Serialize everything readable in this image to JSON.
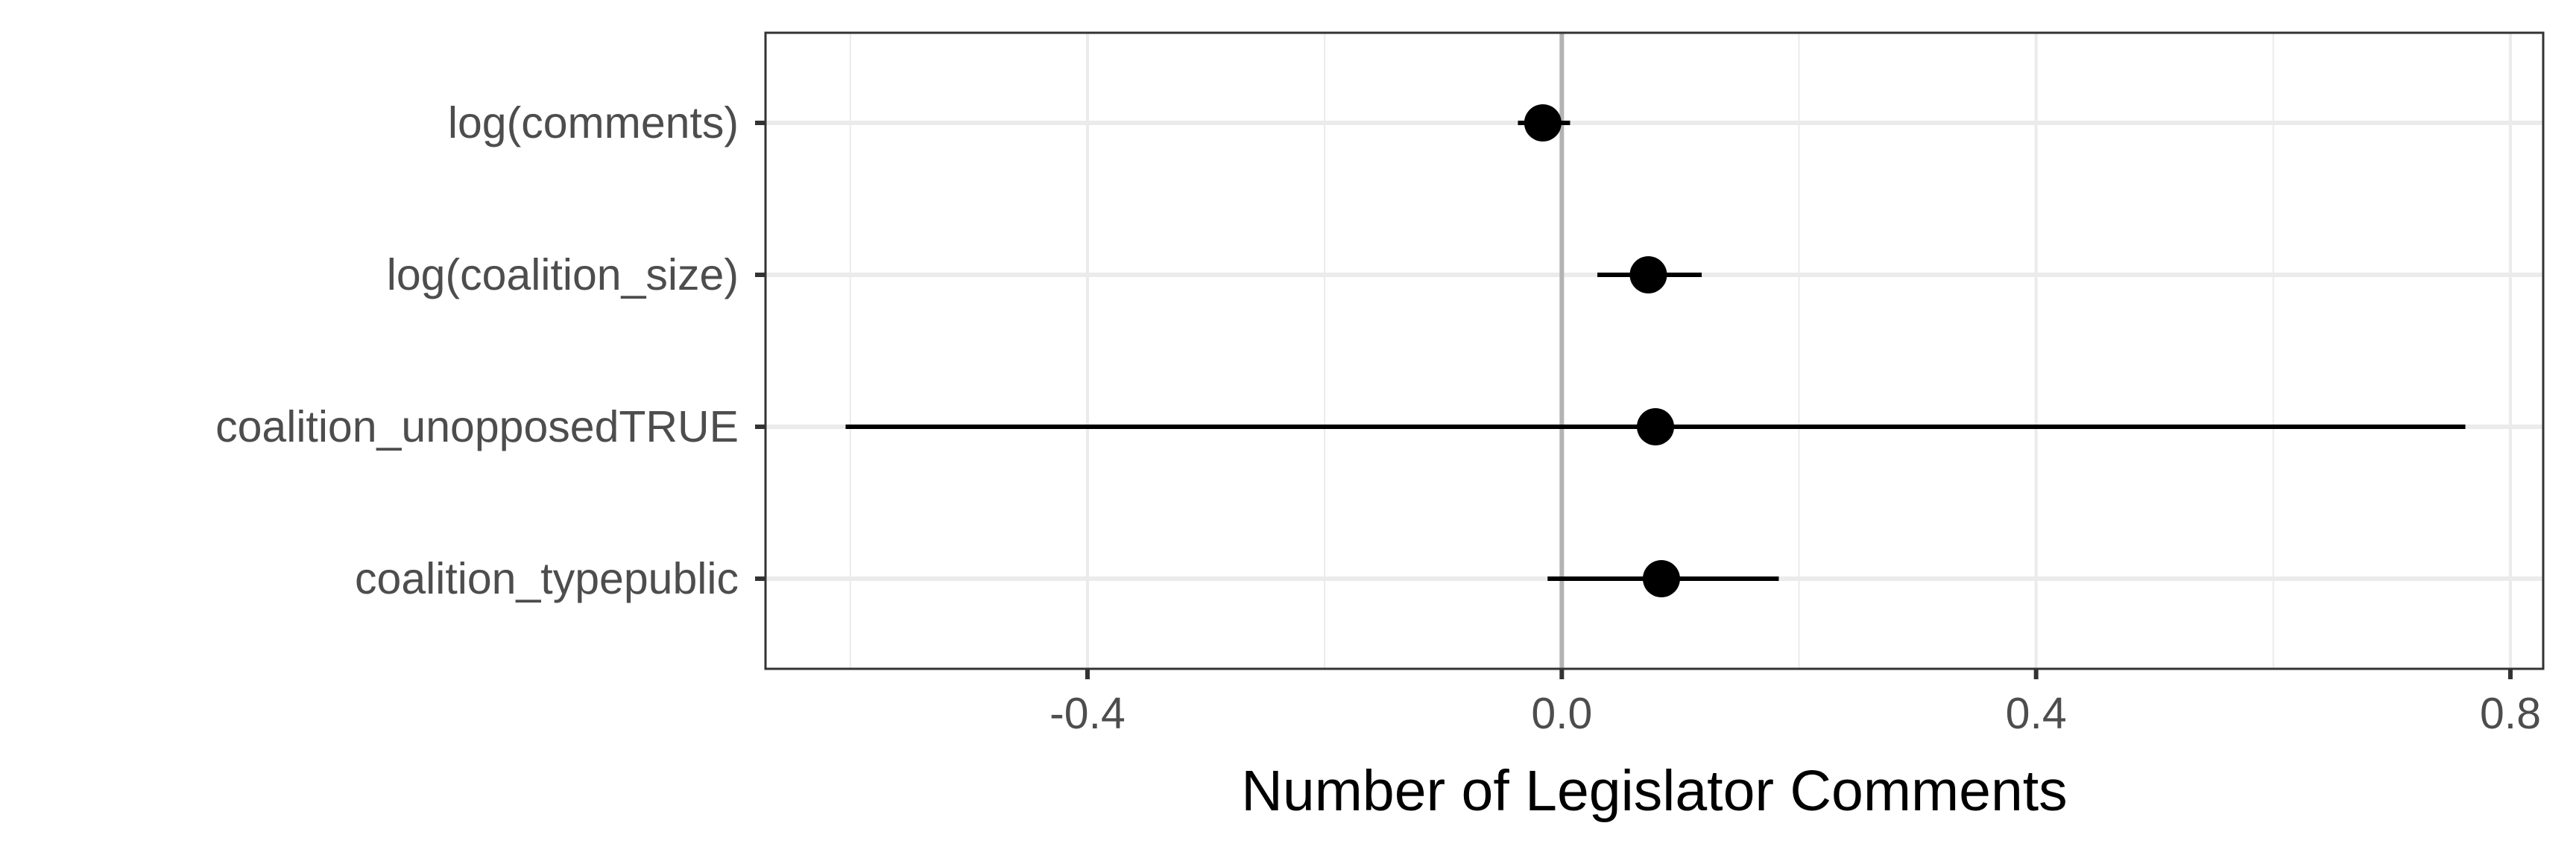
{
  "chart_data": {
    "type": "scatter",
    "subtype": "coefficient-plot",
    "title": "",
    "xlabel": "Number of Legislator Comments",
    "ylabel": "",
    "xlim": [
      -0.68,
      0.82
    ],
    "x_ticks": [
      -0.4,
      0.0,
      0.4,
      0.8
    ],
    "x_tick_labels": [
      "-0.4",
      "0.0",
      "0.4",
      "0.8"
    ],
    "x_minor_ticks": [
      -0.6,
      -0.2,
      0.2,
      0.6
    ],
    "reference_line": 0.0,
    "grid": true,
    "legend": "none",
    "categories": [
      "log(comments)",
      "log(coalition_size)",
      "coalition_unopposedTRUE",
      "coalition_typepublic"
    ],
    "estimates": [
      -0.016,
      0.073,
      0.079,
      0.084
    ],
    "ci_low": [
      -0.037,
      0.03,
      -0.604,
      -0.012
    ],
    "ci_high": [
      0.007,
      0.118,
      0.762,
      0.183
    ],
    "colors": {
      "point": "#000000",
      "errorbar": "#000000",
      "grid": "#ebebeb",
      "panel_border": "#333333",
      "reference_line": "#b3b3b3",
      "tick_label": "#4d4d4d"
    }
  }
}
